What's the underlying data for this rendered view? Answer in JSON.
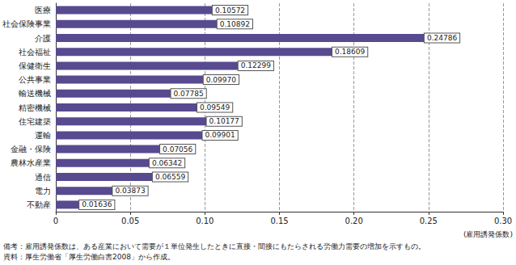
{
  "chart_data": {
    "type": "bar",
    "orientation": "horizontal",
    "categories": [
      "医療",
      "社会保険事業",
      "介護",
      "社会福祉",
      "保健衛生",
      "公共事業",
      "輸送機械",
      "精密機械",
      "住宅建築",
      "運輸",
      "金融・保険",
      "農林水産業",
      "通信",
      "電力",
      "不動産"
    ],
    "values": [
      0.10572,
      0.10892,
      0.24786,
      0.18609,
      0.12299,
      0.0997,
      0.07785,
      0.09549,
      0.10177,
      0.09901,
      0.07056,
      0.06342,
      0.06559,
      0.03873,
      0.01636
    ],
    "value_labels": [
      "0.10572",
      "0.10892",
      "0.24786",
      "0.18609",
      "0.12299",
      "0.09970",
      "0.07785",
      "0.09549",
      "0.10177",
      "0.09901",
      "0.07056",
      "0.06342",
      "0.06559",
      "0.03873",
      "0.01636"
    ],
    "color": "#574a8f",
    "data_labels": true,
    "xlabel": "(雇用誘発係数)",
    "xlim": [
      0,
      0.3
    ],
    "xticks": [
      0,
      0.05,
      {
        "value": 0.1,
        "label": "0.10"
      },
      0.15,
      {
        "value": 0.2,
        "label": "0.20"
      },
      0.25,
      {
        "value": 0.3,
        "label": "0.30"
      }
    ],
    "grid": true,
    "annotations": [
      "備考：雇用誘発係数は、ある産業において需要が１単位発生したときに直接・間接にもたらされる労働力需要の増加を示すもの。",
      "資料：厚生労働省「厚生労働白書2008」から作成。"
    ]
  }
}
